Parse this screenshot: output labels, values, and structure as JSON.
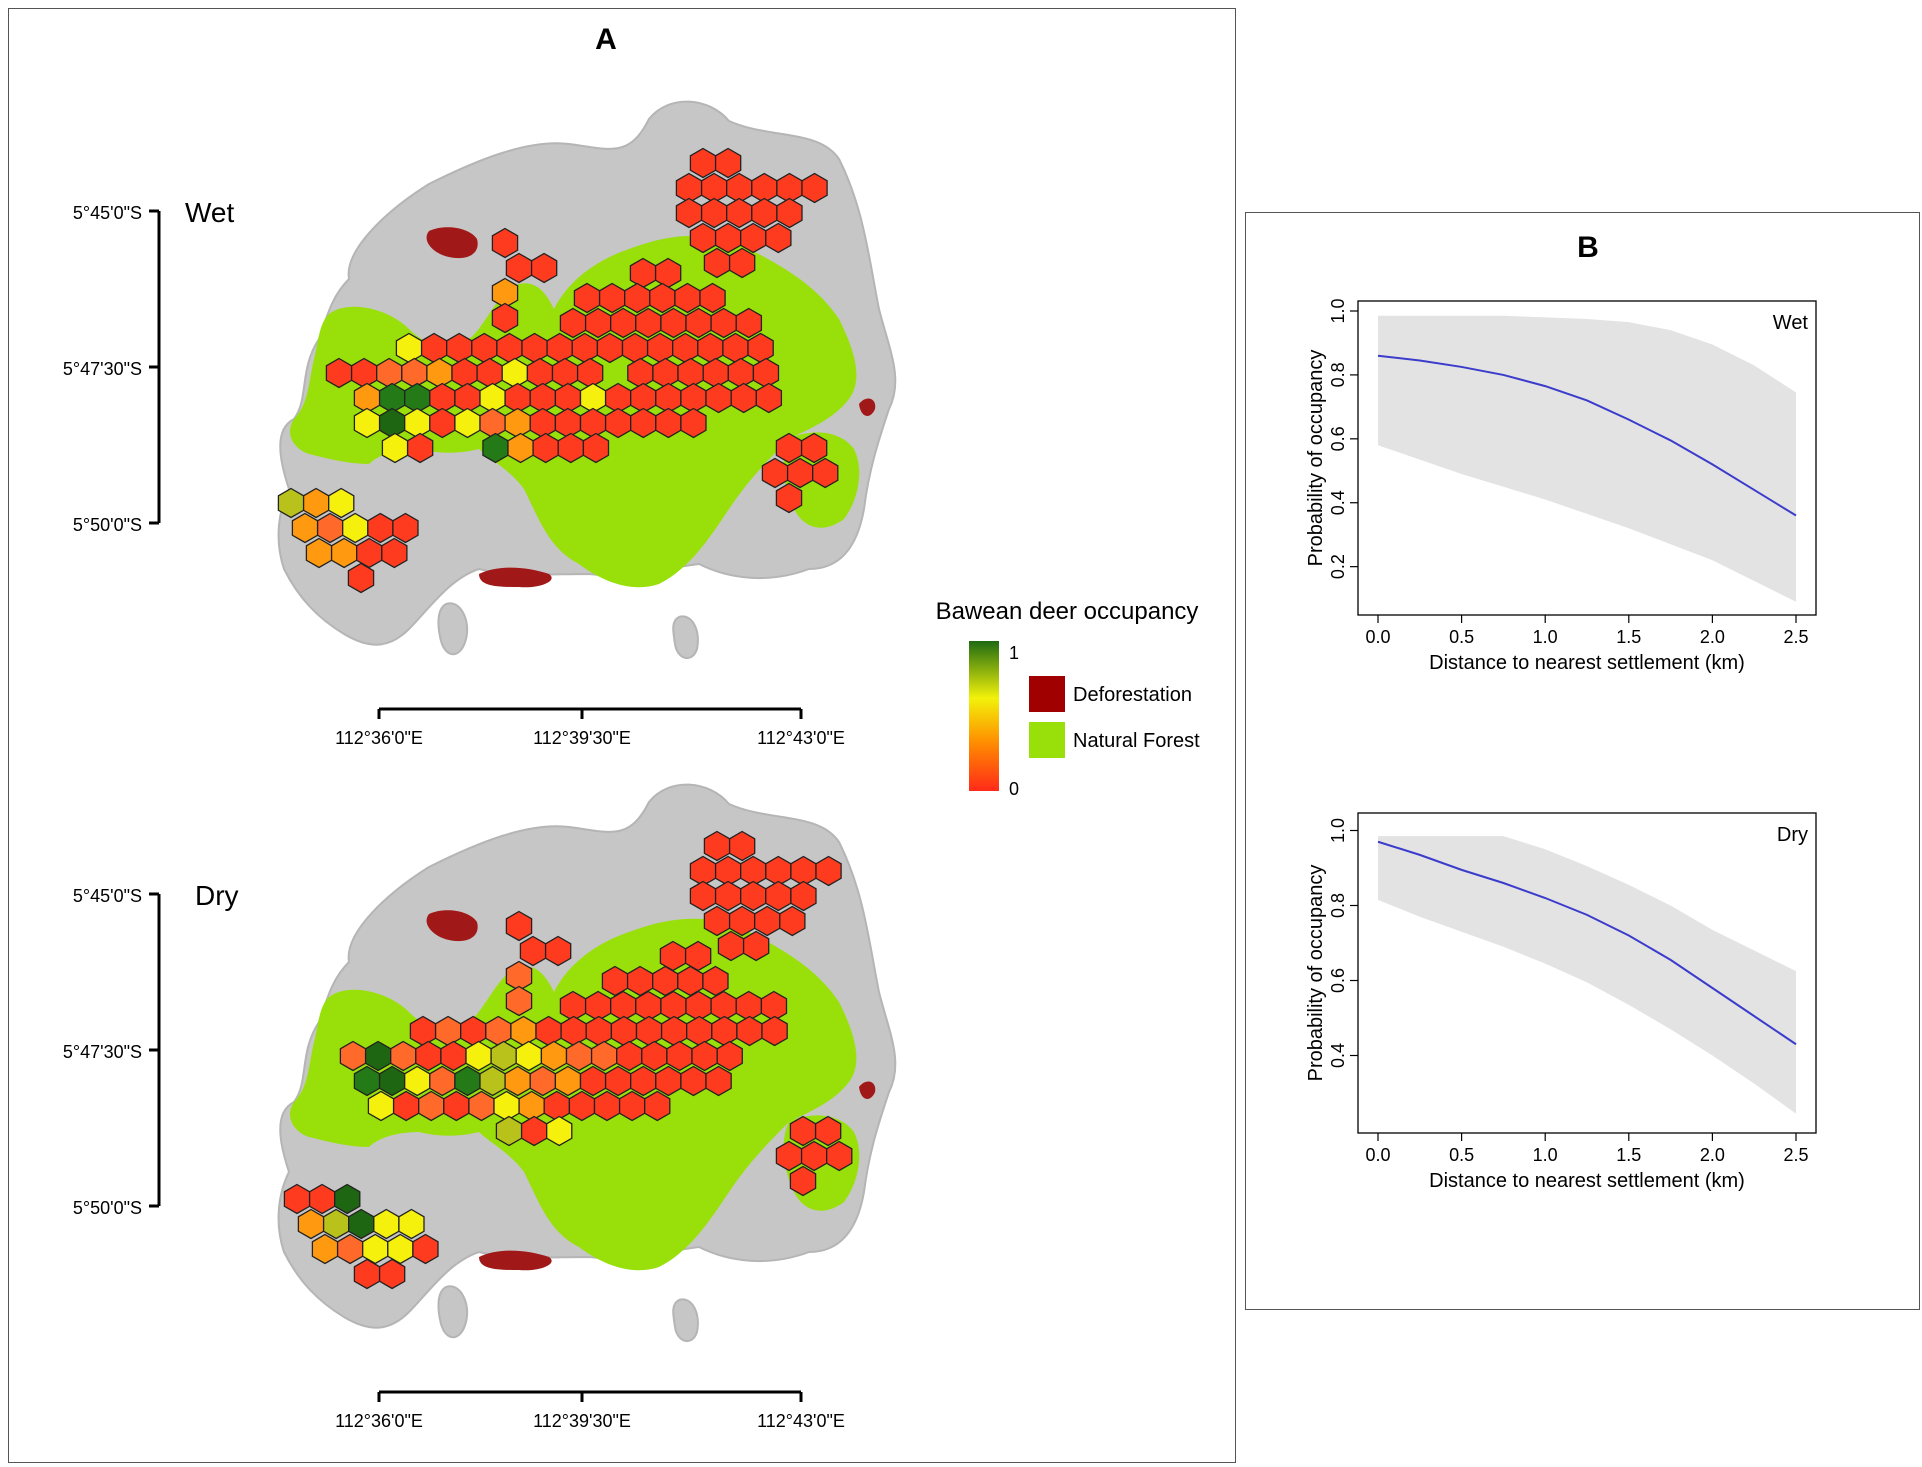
{
  "panel_a": {
    "label": "A",
    "maps": [
      {
        "season": "Wet",
        "lat_ticks": [
          "5°45'0\"S",
          "5°47'30\"S",
          "5°50'0\"S"
        ],
        "lon_ticks": [
          "112°36'0\"E",
          "112°39'30\"E",
          "112°43'0\"E"
        ]
      },
      {
        "season": "Dry",
        "lat_ticks": [
          "5°45'0\"S",
          "5°47'30\"S",
          "5°50'0\"S"
        ],
        "lon_ticks": [
          "112°36'0\"E",
          "112°39'30\"E",
          "112°43'0\"E"
        ]
      }
    ],
    "legend": {
      "title": "Bawean deer occupancy",
      "scale_max": "1",
      "scale_min": "0",
      "items": [
        {
          "label": "Deforestation",
          "color": "#a00000"
        },
        {
          "label": "Natural Forest",
          "color": "#99e00b"
        }
      ],
      "gradient_colors": [
        "#1e6b12",
        "#f2f20a",
        "#ff8c00",
        "#ff2a18"
      ]
    },
    "colors": {
      "island": "#c6c6c6",
      "forest": "#99e00b",
      "deforestation": "#a01818"
    }
  },
  "panel_b": {
    "label": "B"
  },
  "chart_data": [
    {
      "type": "line",
      "label": "Wet",
      "xlabel": "Distance to nearest settlement (km)",
      "ylabel": "Probability of occupancy",
      "xlim": [
        0.0,
        2.5
      ],
      "ylim": [
        0.08,
        1.0
      ],
      "x_ticks": [
        "0.0",
        "0.5",
        "1.0",
        "1.5",
        "2.0",
        "2.5"
      ],
      "y_ticks": [
        "0.2",
        "0.4",
        "0.6",
        "0.8",
        "1.0"
      ],
      "series": [
        {
          "x": [
            0.0,
            0.25,
            0.5,
            0.75,
            1.0,
            1.25,
            1.5,
            1.75,
            2.0,
            2.25,
            2.5
          ],
          "estimate": [
            0.86,
            0.845,
            0.825,
            0.8,
            0.765,
            0.72,
            0.66,
            0.595,
            0.52,
            0.44,
            0.36
          ],
          "lower": [
            0.58,
            0.535,
            0.49,
            0.45,
            0.41,
            0.365,
            0.32,
            0.27,
            0.22,
            0.155,
            0.09
          ],
          "upper": [
            0.985,
            0.985,
            0.985,
            0.985,
            0.98,
            0.975,
            0.965,
            0.94,
            0.895,
            0.83,
            0.745
          ]
        }
      ],
      "colors": {
        "line": "#3c3ccc",
        "band": "#e3e3e3"
      }
    },
    {
      "type": "line",
      "label": "Dry",
      "xlabel": "Distance to nearest settlement (km)",
      "ylabel": "Probability of occupancy",
      "xlim": [
        0.0,
        2.5
      ],
      "ylim": [
        0.22,
        1.02
      ],
      "x_ticks": [
        "0.0",
        "0.5",
        "1.0",
        "1.5",
        "2.0",
        "2.5"
      ],
      "y_ticks": [
        "0.4",
        "0.6",
        "0.8",
        "1.0"
      ],
      "series": [
        {
          "x": [
            0.0,
            0.25,
            0.5,
            0.75,
            1.0,
            1.25,
            1.5,
            1.75,
            2.0,
            2.25,
            2.5
          ],
          "estimate": [
            0.97,
            0.935,
            0.895,
            0.86,
            0.82,
            0.775,
            0.72,
            0.655,
            0.58,
            0.505,
            0.43
          ],
          "lower": [
            0.815,
            0.77,
            0.73,
            0.69,
            0.645,
            0.595,
            0.535,
            0.47,
            0.4,
            0.325,
            0.245
          ],
          "upper": [
            0.985,
            0.985,
            0.985,
            0.985,
            0.95,
            0.905,
            0.855,
            0.8,
            0.735,
            0.68,
            0.625
          ]
        }
      ],
      "colors": {
        "line": "#3c3ccc",
        "band": "#e3e3e3"
      }
    }
  ]
}
